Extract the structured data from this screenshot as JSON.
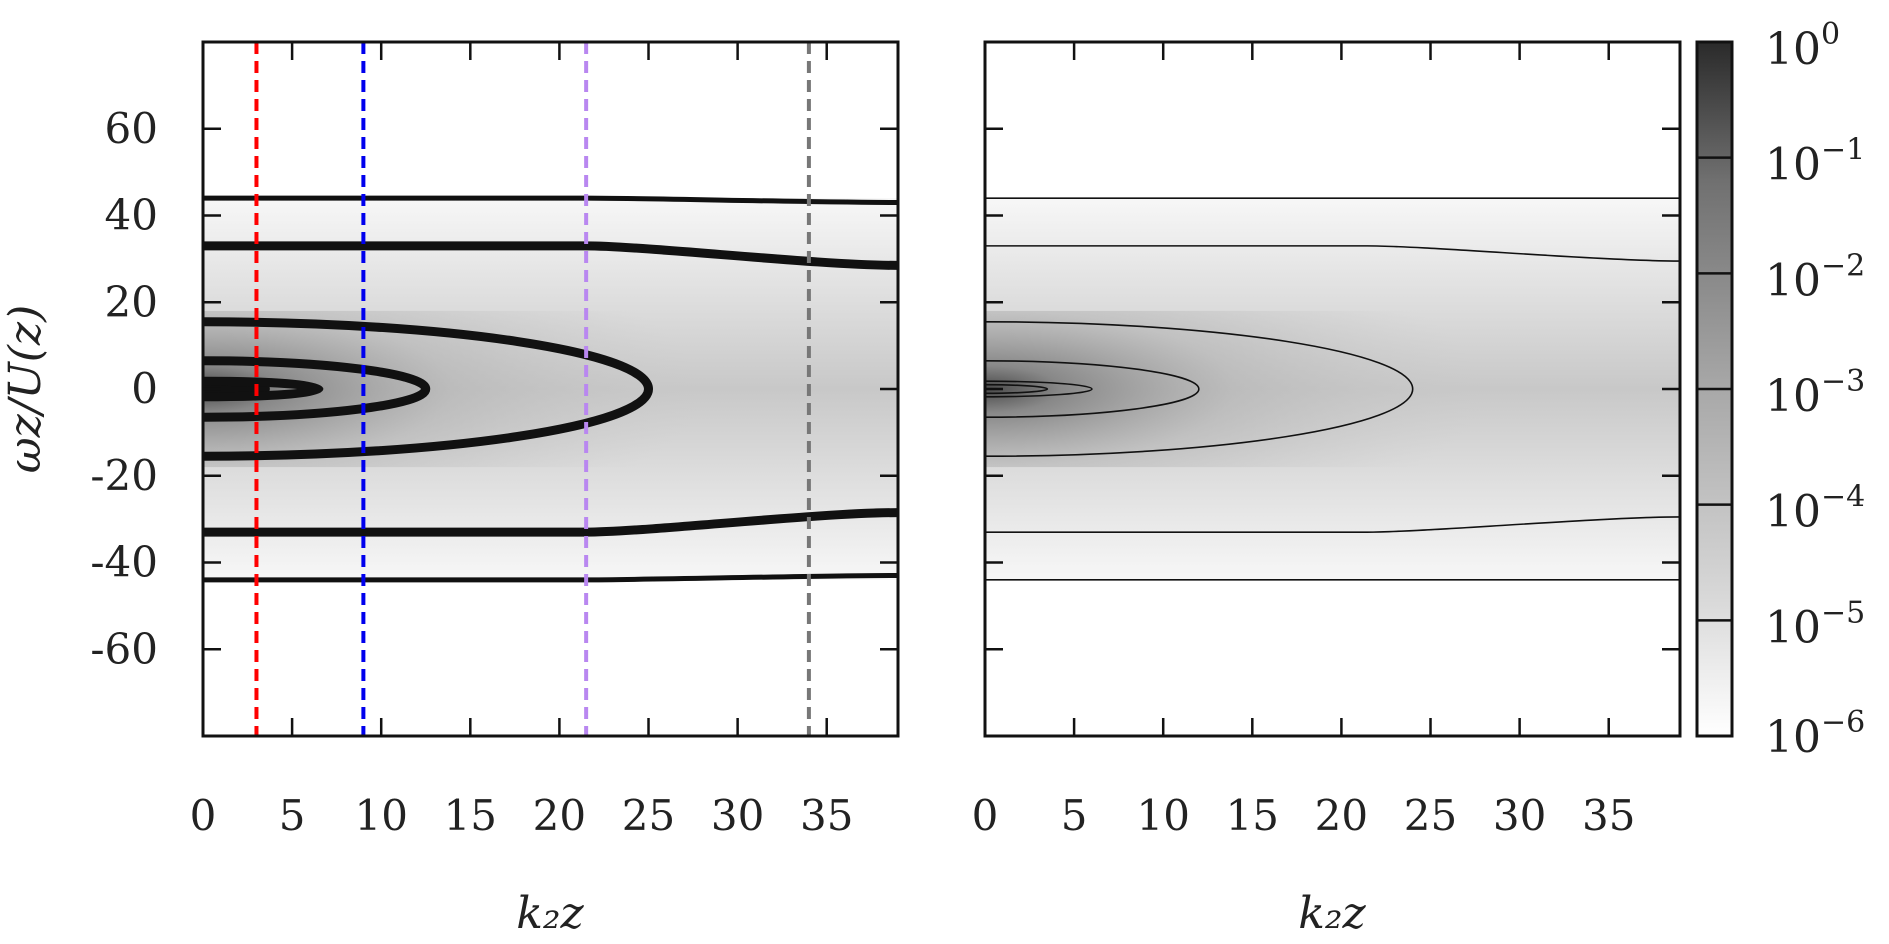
{
  "chart_data": [
    {
      "type": "heatmap",
      "panel": "left",
      "xlabel": "k₂z",
      "ylabel": "ωz/U(z)",
      "xlim": [
        0,
        39
      ],
      "ylim": [
        -80,
        80
      ],
      "xticks": [
        0,
        5,
        10,
        15,
        20,
        25,
        30,
        35
      ],
      "yticks": [
        -60,
        -40,
        -20,
        0,
        20,
        40,
        60
      ],
      "colormap": "grayscale-log",
      "grid": false,
      "band_half_width": 44,
      "contours": [
        {
          "level": 0.1,
          "x_extent": 3.5,
          "y_half": 1.0
        },
        {
          "level": 0.01,
          "x_extent": 6.5,
          "y_half": 1.8
        },
        {
          "level": 0.001,
          "x_extent": 12.5,
          "y_half": 6.5
        },
        {
          "level": 0.0001,
          "x_extent": 25,
          "y_half": 15.5
        },
        {
          "level": 1e-05,
          "y_start": 33,
          "y_end": 28.5
        },
        {
          "level": 1e-06,
          "y_start": 44,
          "y_end": 43
        }
      ],
      "vlines": [
        {
          "x": 3,
          "color": "#ff0000"
        },
        {
          "x": 9,
          "color": "#0000ee"
        },
        {
          "x": 21.5,
          "color": "#b987f0"
        },
        {
          "x": 34,
          "color": "#777777"
        }
      ]
    },
    {
      "type": "heatmap",
      "panel": "right",
      "xlabel": "k₂z",
      "ylabel": "",
      "xlim": [
        0,
        39
      ],
      "ylim": [
        -80,
        80
      ],
      "xticks": [
        0,
        5,
        10,
        15,
        20,
        25,
        30,
        35
      ],
      "yticks": [
        -60,
        -40,
        -20,
        0,
        20,
        40,
        60
      ],
      "colormap": "grayscale-log",
      "grid": false,
      "band_half_width": 44,
      "contours": [
        {
          "level": 0.1,
          "x_extent": 3.5,
          "y_half": 1.0
        },
        {
          "level": 0.01,
          "x_extent": 6.0,
          "y_half": 1.8
        },
        {
          "level": 0.001,
          "x_extent": 12,
          "y_half": 6.5
        },
        {
          "level": 0.0001,
          "x_extent": 24,
          "y_half": 15.5
        },
        {
          "level": 1e-05,
          "y_start": 33,
          "y_end": 29.5
        },
        {
          "level": 1e-06,
          "y_start": 44,
          "y_end": 44
        }
      ]
    }
  ],
  "colorbar": {
    "scale": "log",
    "min": 1e-06,
    "max": 1,
    "ticks": [
      {
        "value": 1.0,
        "base": "10",
        "exp": "0"
      },
      {
        "value": 0.1,
        "base": "10",
        "exp": "−1"
      },
      {
        "value": 0.01,
        "base": "10",
        "exp": "−2"
      },
      {
        "value": 0.001,
        "base": "10",
        "exp": "−3"
      },
      {
        "value": 0.0001,
        "base": "10",
        "exp": "−4"
      },
      {
        "value": 1e-05,
        "base": "10",
        "exp": "−5"
      },
      {
        "value": 1e-06,
        "base": "10",
        "exp": "−6"
      }
    ]
  }
}
